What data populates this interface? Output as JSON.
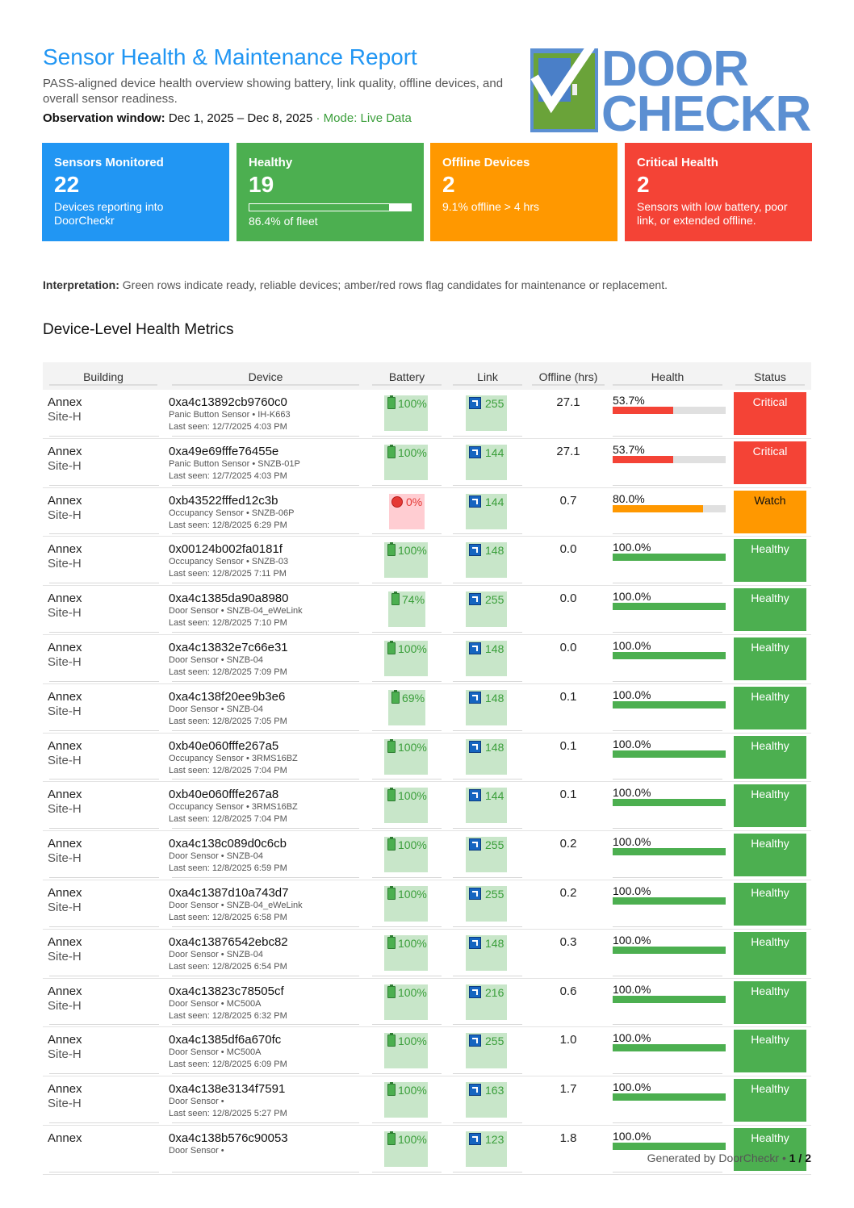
{
  "header": {
    "title": "Sensor Health & Maintenance Report",
    "subtitle": "PASS-aligned device health overview showing battery, link quality, offline devices, and overall sensor readiness.",
    "observation_label": "Observation window:",
    "observation_range": "Dec 1, 2025 – Dec 8, 2025",
    "separator": "·",
    "mode": "Mode: Live Data"
  },
  "logo": {
    "line1": "DOOR",
    "line2": "CHECKR",
    "brand_color": "#5b8fd2"
  },
  "cards": [
    {
      "label": "Sensors Monitored",
      "value": "22",
      "note": "Devices reporting into DoorCheckr",
      "color": "#2196f3"
    },
    {
      "label": "Healthy",
      "value": "19",
      "note": "86.4% of fleet",
      "progress": 0.864,
      "color": "#4caf50"
    },
    {
      "label": "Offline Devices",
      "value": "2",
      "note": "9.1% offline > 4 hrs",
      "color": "#ff9800"
    },
    {
      "label": "Critical Health",
      "value": "2",
      "note": "Sensors with low battery, poor link, or extended offline.",
      "color": "#f44336"
    }
  ],
  "interpretation": {
    "label": "Interpretation:",
    "text": "Green rows indicate ready, reliable devices; amber/red rows flag candidates for maintenance or replacement."
  },
  "section_title": "Device-Level Health Metrics",
  "table": {
    "headers": [
      "Building",
      "Device",
      "Battery",
      "Link",
      "Offline (hrs)",
      "Health",
      "Status"
    ],
    "rows": [
      {
        "building": "Annex",
        "site": "Site-H",
        "id": "0xa4c13892cb9760c0",
        "meta": "Panic Button Sensor • IH-K663",
        "seen": "Last seen: 12/7/2025 4:03 PM",
        "battery": "100%",
        "battery_state": "ok",
        "link": "255",
        "offline": "27.1",
        "health": "53.7%",
        "health_value": 0.537,
        "status": "Critical"
      },
      {
        "building": "Annex",
        "site": "Site-H",
        "id": "0xa49e69fffe76455e",
        "meta": "Panic Button Sensor • SNZB-01P",
        "seen": "Last seen: 12/7/2025 4:03 PM",
        "battery": "100%",
        "battery_state": "ok",
        "link": "144",
        "offline": "27.1",
        "health": "53.7%",
        "health_value": 0.537,
        "status": "Critical"
      },
      {
        "building": "Annex",
        "site": "Site-H",
        "id": "0xb43522fffed12c3b",
        "meta": "Occupancy Sensor • SNZB-06P",
        "seen": "Last seen: 12/8/2025 6:29 PM",
        "battery": "0%",
        "battery_state": "bad",
        "link": "144",
        "offline": "0.7",
        "health": "80.0%",
        "health_value": 0.8,
        "status": "Watch"
      },
      {
        "building": "Annex",
        "site": "Site-H",
        "id": "0x00124b002fa0181f",
        "meta": "Occupancy Sensor • SNZB-03",
        "seen": "Last seen: 12/8/2025 7:11 PM",
        "battery": "100%",
        "battery_state": "ok",
        "link": "148",
        "offline": "0.0",
        "health": "100.0%",
        "health_value": 1.0,
        "status": "Healthy"
      },
      {
        "building": "Annex",
        "site": "Site-H",
        "id": "0xa4c1385da90a8980",
        "meta": "Door Sensor • SNZB-04_eWeLink",
        "seen": "Last seen: 12/8/2025 7:10 PM",
        "battery": "74%",
        "battery_state": "mid",
        "link": "255",
        "offline": "0.0",
        "health": "100.0%",
        "health_value": 1.0,
        "status": "Healthy"
      },
      {
        "building": "Annex",
        "site": "Site-H",
        "id": "0xa4c13832e7c66e31",
        "meta": "Door Sensor • SNZB-04",
        "seen": "Last seen: 12/8/2025 7:09 PM",
        "battery": "100%",
        "battery_state": "ok",
        "link": "148",
        "offline": "0.0",
        "health": "100.0%",
        "health_value": 1.0,
        "status": "Healthy"
      },
      {
        "building": "Annex",
        "site": "Site-H",
        "id": "0xa4c138f20ee9b3e6",
        "meta": "Door Sensor • SNZB-04",
        "seen": "Last seen: 12/8/2025 7:05 PM",
        "battery": "69%",
        "battery_state": "mid",
        "link": "148",
        "offline": "0.1",
        "health": "100.0%",
        "health_value": 1.0,
        "status": "Healthy"
      },
      {
        "building": "Annex",
        "site": "Site-H",
        "id": "0xb40e060fffe267a5",
        "meta": "Occupancy Sensor • 3RMS16BZ",
        "seen": "Last seen: 12/8/2025 7:04 PM",
        "battery": "100%",
        "battery_state": "ok",
        "link": "148",
        "offline": "0.1",
        "health": "100.0%",
        "health_value": 1.0,
        "status": "Healthy"
      },
      {
        "building": "Annex",
        "site": "Site-H",
        "id": "0xb40e060fffe267a8",
        "meta": "Occupancy Sensor • 3RMS16BZ",
        "seen": "Last seen: 12/8/2025 7:04 PM",
        "battery": "100%",
        "battery_state": "ok",
        "link": "144",
        "offline": "0.1",
        "health": "100.0%",
        "health_value": 1.0,
        "status": "Healthy"
      },
      {
        "building": "Annex",
        "site": "Site-H",
        "id": "0xa4c138c089d0c6cb",
        "meta": "Door Sensor • SNZB-04",
        "seen": "Last seen: 12/8/2025 6:59 PM",
        "battery": "100%",
        "battery_state": "ok",
        "link": "255",
        "offline": "0.2",
        "health": "100.0%",
        "health_value": 1.0,
        "status": "Healthy"
      },
      {
        "building": "Annex",
        "site": "Site-H",
        "id": "0xa4c1387d10a743d7",
        "meta": "Door Sensor • SNZB-04_eWeLink",
        "seen": "Last seen: 12/8/2025 6:58 PM",
        "battery": "100%",
        "battery_state": "ok",
        "link": "255",
        "offline": "0.2",
        "health": "100.0%",
        "health_value": 1.0,
        "status": "Healthy"
      },
      {
        "building": "Annex",
        "site": "Site-H",
        "id": "0xa4c13876542ebc82",
        "meta": "Door Sensor • SNZB-04",
        "seen": "Last seen: 12/8/2025 6:54 PM",
        "battery": "100%",
        "battery_state": "ok",
        "link": "148",
        "offline": "0.3",
        "health": "100.0%",
        "health_value": 1.0,
        "status": "Healthy"
      },
      {
        "building": "Annex",
        "site": "Site-H",
        "id": "0xa4c13823c78505cf",
        "meta": "Door Sensor • MC500A",
        "seen": "Last seen: 12/8/2025 6:32 PM",
        "battery": "100%",
        "battery_state": "ok",
        "link": "216",
        "offline": "0.6",
        "health": "100.0%",
        "health_value": 1.0,
        "status": "Healthy"
      },
      {
        "building": "Annex",
        "site": "Site-H",
        "id": "0xa4c1385df6a670fc",
        "meta": "Door Sensor • MC500A",
        "seen": "Last seen: 12/8/2025 6:09 PM",
        "battery": "100%",
        "battery_state": "ok",
        "link": "255",
        "offline": "1.0",
        "health": "100.0%",
        "health_value": 1.0,
        "status": "Healthy"
      },
      {
        "building": "Annex",
        "site": "Site-H",
        "id": "0xa4c138e3134f7591",
        "meta": "Door Sensor •",
        "seen": "Last seen: 12/8/2025 5:27 PM",
        "battery": "100%",
        "battery_state": "ok",
        "link": "163",
        "offline": "1.7",
        "health": "100.0%",
        "health_value": 1.0,
        "status": "Healthy"
      },
      {
        "building": "Annex",
        "site": "",
        "id": "0xa4c138b576c90053",
        "meta": "Door Sensor •",
        "seen": "",
        "battery": "100%",
        "battery_state": "ok",
        "link": "123",
        "offline": "1.8",
        "health": "100.0%",
        "health_value": 1.0,
        "status": "Healthy"
      }
    ]
  },
  "status_colors": {
    "Critical": "#f44336",
    "Watch": "#ff9800",
    "Healthy": "#4caf50"
  },
  "footer": {
    "generated": "Generated by DoorCheckr",
    "separator": "•",
    "page": "1 / 2"
  }
}
